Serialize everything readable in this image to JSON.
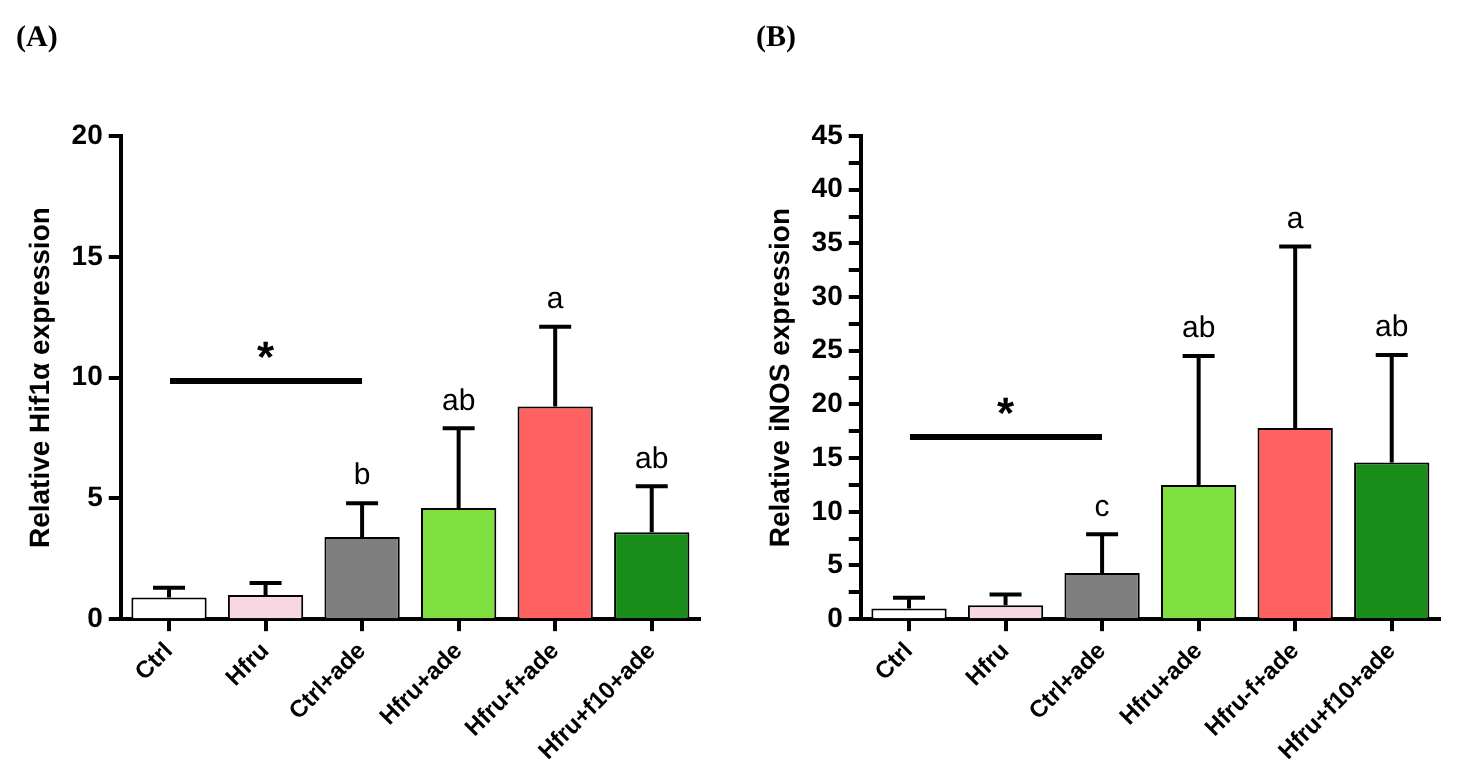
{
  "chart_data": [
    {
      "type": "bar",
      "title": "(A)",
      "ylabel": "Relative Hif1α expression",
      "categories": [
        "Ctrl",
        "Hfru",
        "Ctrl+ade",
        "Hfru+ade",
        "Hfru-f+ade",
        "Hfru+f10+ade"
      ],
      "values": [
        0.9,
        1.0,
        3.4,
        4.6,
        8.8,
        3.6
      ],
      "colors": [
        "#ffffff",
        "#f8d7e0",
        "#7f7f7f",
        "#80e040",
        "#ff6060",
        "#1a8c1a"
      ],
      "errors": [
        [
          0.9,
          1.3
        ],
        [
          1.0,
          1.5
        ],
        [
          3.4,
          4.8
        ],
        [
          4.6,
          7.9
        ],
        [
          8.8,
          12.1
        ],
        [
          3.6,
          5.5
        ]
      ],
      "annotations": [
        "*",
        {
          "text": "b",
          "x": "Ctrl+ade",
          "y": 4.8
        },
        {
          "text": "ab",
          "x": "Hfru+ade",
          "y": 7.9
        },
        {
          "text": "a",
          "x": "Hfru-f+ade",
          "y": 12.1
        },
        {
          "text": "ab",
          "x": "Hfru+f10+ade",
          "y": 5.5
        }
      ],
      "ylim": [
        0,
        20
      ],
      "yticks": [
        0,
        5,
        10,
        15,
        20
      ],
      "grid": false,
      "legend": false
    },
    {
      "type": "bar",
      "title": "(B)",
      "ylabel": "Relative iNOS expression",
      "categories": [
        "Ctrl",
        "Hfru",
        "Ctrl+ade",
        "Hfru+ade",
        "Hfru-f+ade",
        "Hfru+f10+ade"
      ],
      "values": [
        1.0,
        1.3,
        4.3,
        12.5,
        17.8,
        14.6
      ],
      "colors": [
        "#ffffff",
        "#f8d7e0",
        "#7f7f7f",
        "#80e040",
        "#ff6060",
        "#1a8c1a"
      ],
      "errors": [
        [
          1.0,
          2.0
        ],
        [
          1.3,
          2.3
        ],
        [
          4.3,
          7.9
        ],
        [
          12.5,
          24.5
        ],
        [
          17.8,
          34.7
        ],
        [
          14.6,
          24.6
        ]
      ],
      "annotations": [
        "*",
        {
          "text": "c",
          "x": "Ctrl+ade",
          "y": 7.9
        },
        {
          "text": "ab",
          "x": "Hfru+ade",
          "y": 24.5
        },
        {
          "text": "a",
          "x": "Hfru-f+ade",
          "y": 34.7
        },
        {
          "text": "ab",
          "x": "Hfru+f10+ade",
          "y": 24.6
        }
      ],
      "ylim": [
        0,
        45
      ],
      "yticks": [
        0,
        {
          "value": 2.5,
          "label": null
        },
        5,
        {
          "value": 7.5,
          "label": null
        },
        10,
        {
          "value": 12.5,
          "label": null
        },
        15,
        {
          "value": 17.5,
          "label": null
        },
        20,
        {
          "value": 22.5,
          "label": null
        },
        25,
        {
          "value": 27.5,
          "label": null
        },
        30,
        {
          "value": 32.5,
          "label": null
        },
        35,
        {
          "value": 37.5,
          "label": null
        },
        40,
        {
          "value": 42.5,
          "label": null
        },
        45
      ],
      "grid": false,
      "legend": false
    }
  ]
}
